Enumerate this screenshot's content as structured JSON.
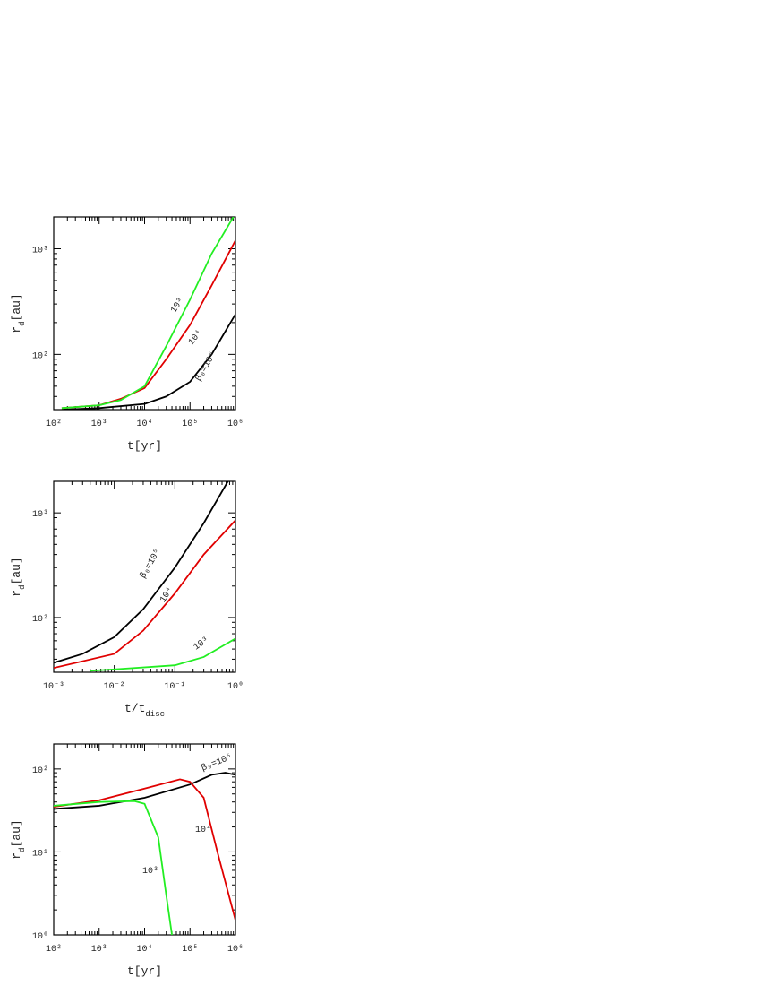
{
  "chart_data": [
    {
      "type": "line",
      "log_x": true,
      "log_y": true,
      "xlabel": "t[yr]",
      "ylabel": [
        "r",
        "d",
        "[au]"
      ],
      "xlim": [
        100,
        1000000
      ],
      "ylim": [
        30,
        2000
      ],
      "xticks": [
        {
          "value": 100,
          "label": "10²"
        },
        {
          "value": 1000,
          "label": "10³"
        },
        {
          "value": 10000,
          "label": "10⁴"
        },
        {
          "value": 100000,
          "label": "10⁵"
        },
        {
          "value": 1000000,
          "label": "10⁶"
        }
      ],
      "yticks": [
        {
          "value": 100,
          "label": "10²"
        },
        {
          "value": 1000,
          "label": "10³"
        }
      ],
      "series": [
        {
          "name": "β₀=10⁵",
          "color": "#000000",
          "x": [
            150,
            1000,
            10000,
            30000,
            100000,
            300000,
            1000000
          ],
          "values": [
            30,
            31,
            34,
            40,
            55,
            100,
            240
          ]
        },
        {
          "name": "10⁴",
          "color": "#e00000",
          "x": [
            150,
            1000,
            3000,
            10000,
            30000,
            100000,
            300000,
            1000000
          ],
          "values": [
            31,
            33,
            38,
            48,
            90,
            190,
            450,
            1200
          ]
        },
        {
          "name": "10³",
          "color": "#22ee22",
          "x": [
            150,
            1000,
            3000,
            10000,
            30000,
            100000,
            300000,
            900000
          ],
          "values": [
            31,
            33,
            37,
            50,
            120,
            330,
            900,
            2000
          ]
        }
      ]
    },
    {
      "type": "line",
      "log_x": true,
      "log_y": true,
      "xlabel": [
        "t/t",
        "disc"
      ],
      "ylabel": [
        "r",
        "d",
        "[au]"
      ],
      "xlim": [
        0.001,
        1
      ],
      "ylim": [
        30,
        2000
      ],
      "xticks": [
        {
          "value": 0.001,
          "label": "10⁻³"
        },
        {
          "value": 0.01,
          "label": "10⁻²"
        },
        {
          "value": 0.1,
          "label": "10⁻¹"
        },
        {
          "value": 1,
          "label": "10⁰"
        }
      ],
      "yticks": [
        {
          "value": 100,
          "label": "10²"
        },
        {
          "value": 1000,
          "label": "10³"
        }
      ],
      "series": [
        {
          "name": "β₀=10⁵",
          "color": "#000000",
          "x": [
            0.001,
            0.003,
            0.01,
            0.03,
            0.1,
            0.3,
            0.75
          ],
          "values": [
            37,
            45,
            65,
            120,
            300,
            800,
            2000
          ]
        },
        {
          "name": "10⁴",
          "color": "#e00000",
          "x": [
            0.001,
            0.01,
            0.03,
            0.1,
            0.3,
            1
          ],
          "values": [
            33,
            45,
            75,
            170,
            400,
            850
          ]
        },
        {
          "name": "10³",
          "color": "#22ee22",
          "x": [
            0.004,
            0.01,
            0.1,
            0.3,
            1
          ],
          "values": [
            31,
            32,
            35,
            42,
            63
          ]
        }
      ]
    },
    {
      "type": "line",
      "log_x": true,
      "log_y": true,
      "xlabel": "t[yr]",
      "ylabel": [
        "r",
        "d",
        "[au]"
      ],
      "xlim": [
        100,
        1000000
      ],
      "ylim": [
        1,
        200
      ],
      "xticks": [
        {
          "value": 100,
          "label": "10²"
        },
        {
          "value": 1000,
          "label": "10³"
        },
        {
          "value": 10000,
          "label": "10⁴"
        },
        {
          "value": 100000,
          "label": "10⁵"
        },
        {
          "value": 1000000,
          "label": "10⁶"
        }
      ],
      "yticks": [
        {
          "value": 1,
          "label": "10⁰"
        },
        {
          "value": 10,
          "label": "10¹"
        },
        {
          "value": 100,
          "label": "10²"
        }
      ],
      "series": [
        {
          "name": "β₀=10⁵",
          "color": "#000000",
          "x": [
            100,
            1000,
            10000,
            100000,
            300000,
            600000,
            1000000
          ],
          "values": [
            33,
            36,
            45,
            65,
            85,
            90,
            85
          ]
        },
        {
          "name": "10⁴",
          "color": "#e00000",
          "x": [
            100,
            1000,
            10000,
            60000,
            100000,
            200000,
            400000,
            1000000
          ],
          "values": [
            35,
            42,
            58,
            75,
            70,
            45,
            10,
            1.5
          ]
        },
        {
          "name": "10³",
          "color": "#22ee22",
          "x": [
            100,
            1000,
            6000,
            10000,
            20000,
            30000,
            40000
          ],
          "values": [
            36,
            40,
            41,
            38,
            15,
            3,
            1
          ]
        }
      ]
    }
  ]
}
